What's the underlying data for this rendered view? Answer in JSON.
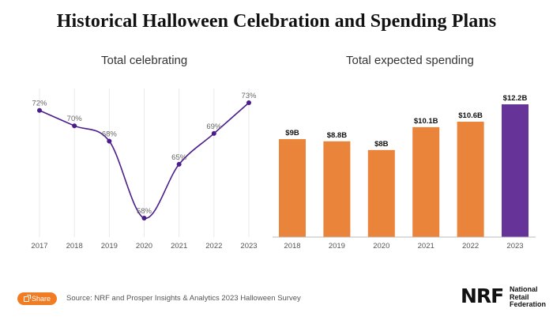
{
  "title": "Historical Halloween Celebration and Spending Plans",
  "colors": {
    "line": "#4a1c8c",
    "bar": "#e9843a",
    "bar_highlight": "#663399",
    "grid": "#e9e9e9",
    "share": "#f07c24"
  },
  "chart_data": [
    {
      "type": "line",
      "title": "Total celebrating",
      "x": [
        "2017",
        "2018",
        "2019",
        "2020",
        "2021",
        "2022",
        "2023"
      ],
      "values": [
        72,
        70,
        68,
        58,
        65,
        69,
        73
      ],
      "data_labels": [
        "72%",
        "70%",
        "68%",
        "58%",
        "65%",
        "69%",
        "73%"
      ],
      "unit": "%",
      "grid": "vertical"
    },
    {
      "type": "bar",
      "title": "Total expected spending",
      "categories": [
        "2018",
        "2019",
        "2020",
        "2021",
        "2022",
        "2023"
      ],
      "values": [
        9.0,
        8.8,
        8.0,
        10.1,
        10.6,
        12.2
      ],
      "data_labels": [
        "$9B",
        "$8.8B",
        "$8B",
        "$10.1B",
        "$10.6B",
        "$12.2B"
      ],
      "unit": "$B",
      "highlight": "2023"
    }
  ],
  "footer": {
    "share_label": "Share",
    "share_icon": "share-icon",
    "source": "Source: NRF and Prosper Insights & Analytics 2023 Halloween Survey",
    "logo_text": "NRF",
    "logo_lines": [
      "National",
      "Retail",
      "Federation"
    ]
  }
}
